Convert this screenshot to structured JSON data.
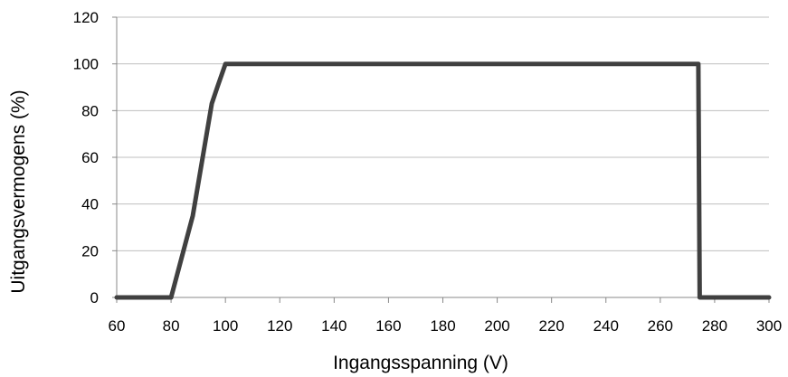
{
  "chart_data": {
    "type": "line",
    "title": "",
    "xlabel": "Ingangsspanning (V)",
    "ylabel": "Uitgangsvermogens (%)",
    "xlim": [
      60,
      300
    ],
    "ylim": [
      0,
      120
    ],
    "x_ticks": [
      60,
      80,
      100,
      120,
      140,
      160,
      180,
      200,
      220,
      240,
      260,
      280,
      300
    ],
    "y_ticks": [
      0,
      20,
      40,
      60,
      80,
      100,
      120
    ],
    "grid": "horizontal",
    "legend": "none",
    "line_color": "#404040",
    "grid_color": "#bfbfbf",
    "series": [
      {
        "x": [
          60,
          80,
          88,
          95,
          97,
          100,
          274,
          274.5,
          300
        ],
        "y": [
          0,
          0,
          35,
          83,
          90,
          100,
          100,
          0,
          0
        ]
      }
    ]
  }
}
